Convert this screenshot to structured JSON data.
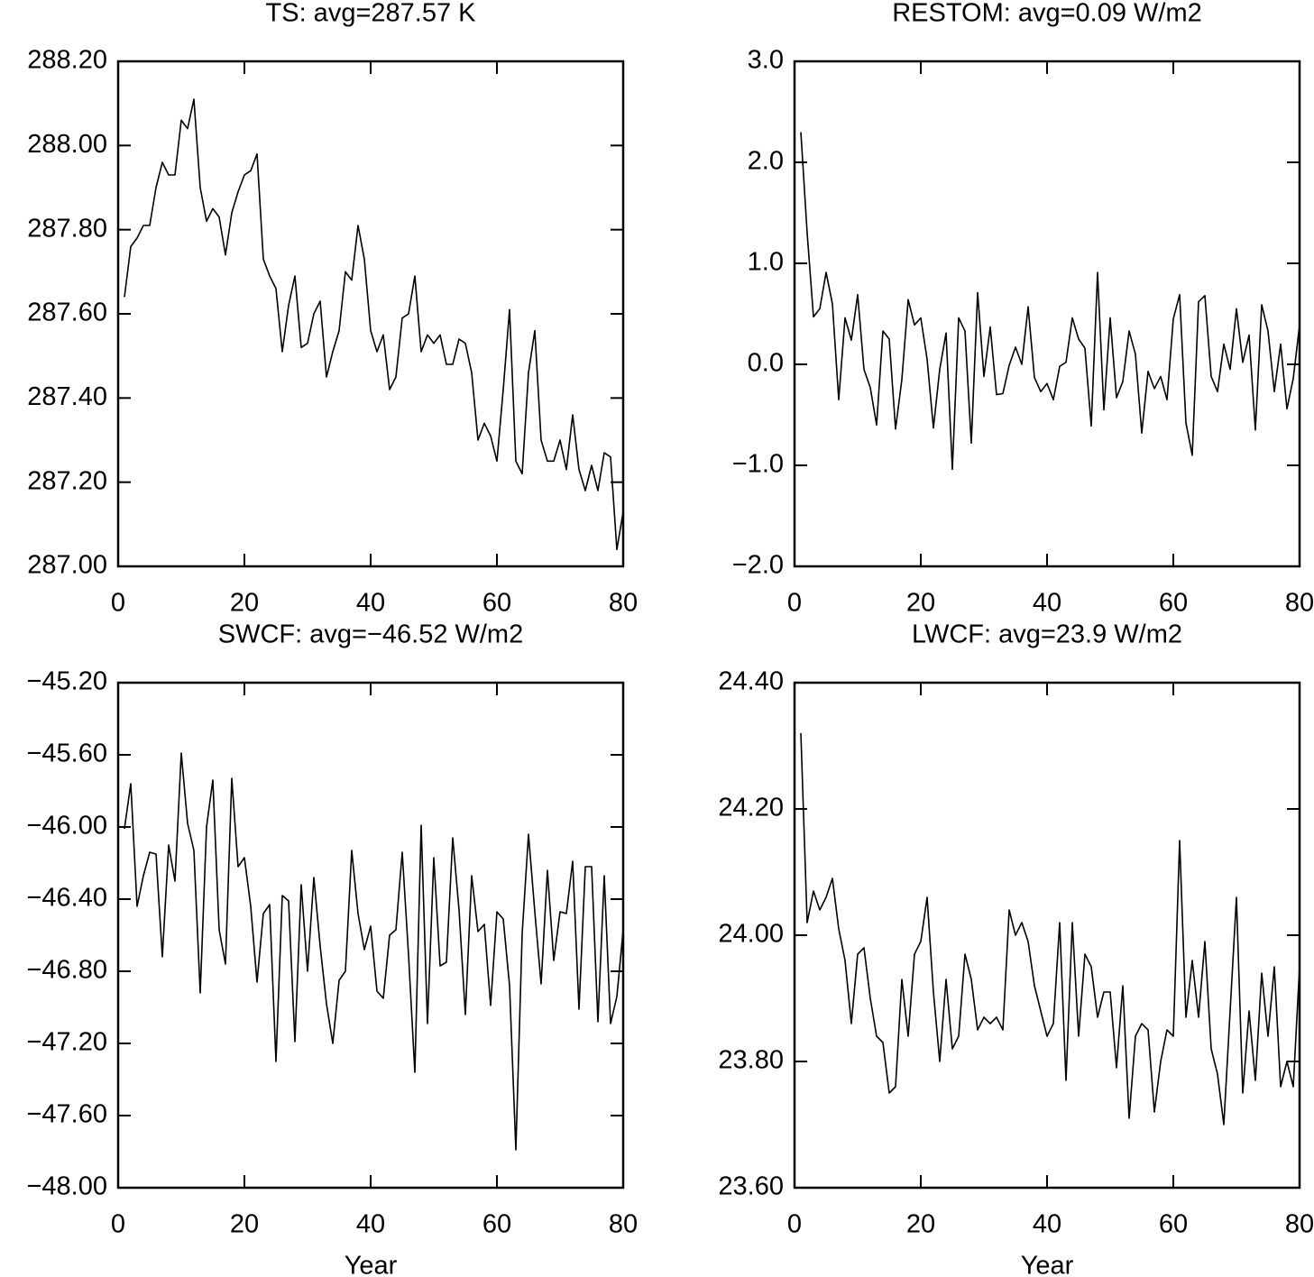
{
  "chart_data": [
    {
      "type": "line",
      "title": "TS: avg=287.57 K",
      "color": "#000000",
      "x": [
        1,
        2,
        3,
        4,
        5,
        6,
        7,
        8,
        9,
        10,
        11,
        12,
        13,
        14,
        15,
        16,
        17,
        18,
        19,
        20,
        21,
        22,
        23,
        24,
        25,
        26,
        27,
        28,
        29,
        30,
        31,
        32,
        33,
        34,
        35,
        36,
        37,
        38,
        39,
        40,
        41,
        42,
        43,
        44,
        45,
        46,
        47,
        48,
        49,
        50,
        51,
        52,
        53,
        54,
        55,
        56,
        57,
        58,
        59,
        60,
        61,
        62,
        63,
        64,
        65,
        66,
        67,
        68,
        69,
        70,
        71,
        72,
        73,
        74,
        75,
        76,
        77,
        78,
        79,
        80
      ],
      "values": [
        287.64,
        287.76,
        287.78,
        287.81,
        287.81,
        287.9,
        287.96,
        287.93,
        287.93,
        288.06,
        288.04,
        288.11,
        287.9,
        287.82,
        287.85,
        287.83,
        287.74,
        287.84,
        287.89,
        287.93,
        287.94,
        287.98,
        287.73,
        287.69,
        287.66,
        287.51,
        287.62,
        287.69,
        287.52,
        287.53,
        287.6,
        287.63,
        287.45,
        287.51,
        287.56,
        287.7,
        287.68,
        287.81,
        287.73,
        287.56,
        287.51,
        287.55,
        287.42,
        287.45,
        287.59,
        287.6,
        287.69,
        287.51,
        287.55,
        287.53,
        287.55,
        287.48,
        287.48,
        287.54,
        287.53,
        287.46,
        287.3,
        287.34,
        287.31,
        287.25,
        287.42,
        287.61,
        287.25,
        287.22,
        287.46,
        287.56,
        287.3,
        287.25,
        287.25,
        287.3,
        287.23,
        287.36,
        287.23,
        287.18,
        287.24,
        287.18,
        287.27,
        287.26,
        287.04,
        287.13
      ],
      "xlim": [
        0,
        80
      ],
      "xticks": [
        0,
        20,
        40,
        60,
        80
      ],
      "ylim": [
        287.0,
        288.2
      ],
      "yticks": [
        {
          "value": 287.0,
          "label": "287.00"
        },
        {
          "value": 287.2,
          "label": "287.20"
        },
        {
          "value": 287.4,
          "label": "287.40"
        },
        {
          "value": 287.6,
          "label": "287.60"
        },
        {
          "value": 287.8,
          "label": "287.80"
        },
        {
          "value": 288.0,
          "label": "288.00"
        },
        {
          "value": 288.2,
          "label": "288.20"
        }
      ]
    },
    {
      "type": "line",
      "title": "RESTOM: avg=0.09 W/m2",
      "color": "#000000",
      "x": [
        1,
        2,
        3,
        4,
        5,
        6,
        7,
        8,
        9,
        10,
        11,
        12,
        13,
        14,
        15,
        16,
        17,
        18,
        19,
        20,
        21,
        22,
        23,
        24,
        25,
        26,
        27,
        28,
        29,
        30,
        31,
        32,
        33,
        34,
        35,
        36,
        37,
        38,
        39,
        40,
        41,
        42,
        43,
        44,
        45,
        46,
        47,
        48,
        49,
        50,
        51,
        52,
        53,
        54,
        55,
        56,
        57,
        58,
        59,
        60,
        61,
        62,
        63,
        64,
        65,
        66,
        67,
        68,
        69,
        70,
        71,
        72,
        73,
        74,
        75,
        76,
        77,
        78,
        79,
        80
      ],
      "values": [
        2.3,
        1.3,
        0.47,
        0.55,
        0.91,
        0.6,
        -0.35,
        0.46,
        0.24,
        0.69,
        -0.05,
        -0.23,
        -0.6,
        0.33,
        0.25,
        -0.64,
        -0.15,
        0.64,
        0.39,
        0.46,
        0.05,
        -0.63,
        -0.05,
        0.31,
        -1.04,
        0.46,
        0.33,
        -0.78,
        0.71,
        -0.12,
        0.37,
        -0.3,
        -0.29,
        -0.01,
        0.17,
        0.0,
        0.57,
        -0.13,
        -0.27,
        -0.19,
        -0.35,
        -0.02,
        0.02,
        0.46,
        0.25,
        0.16,
        -0.61,
        0.91,
        -0.45,
        0.46,
        -0.33,
        -0.17,
        0.33,
        0.1,
        -0.68,
        -0.07,
        -0.24,
        -0.12,
        -0.35,
        0.45,
        0.69,
        -0.58,
        -0.9,
        0.62,
        0.68,
        -0.12,
        -0.27,
        0.2,
        -0.05,
        0.55,
        0.02,
        0.29,
        -0.65,
        0.59,
        0.33,
        -0.27,
        0.2,
        -0.44,
        -0.14,
        0.39
      ],
      "xlim": [
        0,
        80
      ],
      "xticks": [
        0,
        20,
        40,
        60,
        80
      ],
      "ylim": [
        -2.0,
        3.0
      ],
      "yticks": [
        {
          "value": -2.0,
          "label": "−2.0"
        },
        {
          "value": -1.0,
          "label": "−1.0"
        },
        {
          "value": 0.0,
          "label": "0.0"
        },
        {
          "value": 1.0,
          "label": "1.0"
        },
        {
          "value": 2.0,
          "label": "2.0"
        },
        {
          "value": 3.0,
          "label": "3.0"
        }
      ]
    },
    {
      "type": "line",
      "title": "SWCF: avg=−46.52 W/m2",
      "xlabel": "Year",
      "color": "#000000",
      "x": [
        1,
        2,
        3,
        4,
        5,
        6,
        7,
        8,
        9,
        10,
        11,
        12,
        13,
        14,
        15,
        16,
        17,
        18,
        19,
        20,
        21,
        22,
        23,
        24,
        25,
        26,
        27,
        28,
        29,
        30,
        31,
        32,
        33,
        34,
        35,
        36,
        37,
        38,
        39,
        40,
        41,
        42,
        43,
        44,
        45,
        46,
        47,
        48,
        49,
        50,
        51,
        52,
        53,
        54,
        55,
        56,
        57,
        58,
        59,
        60,
        61,
        62,
        63,
        64,
        65,
        66,
        67,
        68,
        69,
        70,
        71,
        72,
        73,
        74,
        75,
        76,
        77,
        78,
        79,
        80
      ],
      "values": [
        -46.01,
        -45.76,
        -46.44,
        -46.27,
        -46.14,
        -46.15,
        -46.72,
        -46.1,
        -46.3,
        -45.59,
        -45.98,
        -46.13,
        -46.92,
        -46.0,
        -45.74,
        -46.57,
        -46.76,
        -45.73,
        -46.22,
        -46.17,
        -46.44,
        -46.86,
        -46.48,
        -46.43,
        -47.3,
        -46.38,
        -46.41,
        -47.19,
        -46.32,
        -46.8,
        -46.28,
        -46.66,
        -46.98,
        -47.2,
        -46.85,
        -46.8,
        -46.13,
        -46.48,
        -46.68,
        -46.55,
        -46.91,
        -46.95,
        -46.6,
        -46.57,
        -46.14,
        -46.71,
        -47.36,
        -45.99,
        -47.09,
        -46.17,
        -46.77,
        -46.75,
        -46.06,
        -46.46,
        -47.04,
        -46.27,
        -46.58,
        -46.54,
        -46.99,
        -46.47,
        -46.51,
        -46.88,
        -47.79,
        -46.59,
        -46.04,
        -46.47,
        -46.87,
        -46.24,
        -46.74,
        -46.47,
        -46.48,
        -46.19,
        -47.01,
        -46.22,
        -46.22,
        -47.08,
        -46.27,
        -47.09,
        -46.94,
        -46.57
      ],
      "xlim": [
        0,
        80
      ],
      "xticks": [
        0,
        20,
        40,
        60,
        80
      ],
      "ylim": [
        -48.0,
        -45.2
      ],
      "yticks": [
        {
          "value": -48.0,
          "label": "−48.00"
        },
        {
          "value": -47.6,
          "label": "−47.60"
        },
        {
          "value": -47.2,
          "label": "−47.20"
        },
        {
          "value": -46.8,
          "label": "−46.80"
        },
        {
          "value": -46.4,
          "label": "−46.40"
        },
        {
          "value": -46.0,
          "label": "−46.00"
        },
        {
          "value": -45.6,
          "label": "−45.60"
        },
        {
          "value": -45.2,
          "label": "−45.20"
        }
      ]
    },
    {
      "type": "line",
      "title": "LWCF: avg=23.9 W/m2",
      "xlabel": "Year",
      "color": "#000000",
      "x": [
        1,
        2,
        3,
        4,
        5,
        6,
        7,
        8,
        9,
        10,
        11,
        12,
        13,
        14,
        15,
        16,
        17,
        18,
        19,
        20,
        21,
        22,
        23,
        24,
        25,
        26,
        27,
        28,
        29,
        30,
        31,
        32,
        33,
        34,
        35,
        36,
        37,
        38,
        39,
        40,
        41,
        42,
        43,
        44,
        45,
        46,
        47,
        48,
        49,
        50,
        51,
        52,
        53,
        54,
        55,
        56,
        57,
        58,
        59,
        60,
        61,
        62,
        63,
        64,
        65,
        66,
        67,
        68,
        69,
        70,
        71,
        72,
        73,
        74,
        75,
        76,
        77,
        78,
        79,
        80
      ],
      "values": [
        24.32,
        24.02,
        24.07,
        24.04,
        24.06,
        24.09,
        24.01,
        23.96,
        23.86,
        23.97,
        23.98,
        23.9,
        23.84,
        23.83,
        23.75,
        23.76,
        23.93,
        23.84,
        23.97,
        23.99,
        24.06,
        23.91,
        23.8,
        23.93,
        23.82,
        23.84,
        23.97,
        23.93,
        23.85,
        23.87,
        23.86,
        23.87,
        23.85,
        24.04,
        24.0,
        24.02,
        23.99,
        23.92,
        23.88,
        23.84,
        23.86,
        24.02,
        23.77,
        24.02,
        23.84,
        23.97,
        23.95,
        23.87,
        23.91,
        23.91,
        23.79,
        23.92,
        23.71,
        23.84,
        23.86,
        23.85,
        23.72,
        23.8,
        23.85,
        23.84,
        24.15,
        23.87,
        23.96,
        23.87,
        23.99,
        23.82,
        23.78,
        23.7,
        23.88,
        24.06,
        23.75,
        23.88,
        23.77,
        23.94,
        23.84,
        23.95,
        23.76,
        23.8,
        23.76,
        23.95
      ],
      "xlim": [
        0,
        80
      ],
      "xticks": [
        0,
        20,
        40,
        60,
        80
      ],
      "ylim": [
        23.6,
        24.4
      ],
      "yticks": [
        {
          "value": 23.6,
          "label": "23.60"
        },
        {
          "value": 23.8,
          "label": "23.80"
        },
        {
          "value": 24.0,
          "label": "24.00"
        },
        {
          "value": 24.2,
          "label": "24.20"
        },
        {
          "value": 24.4,
          "label": "24.40"
        }
      ]
    }
  ]
}
